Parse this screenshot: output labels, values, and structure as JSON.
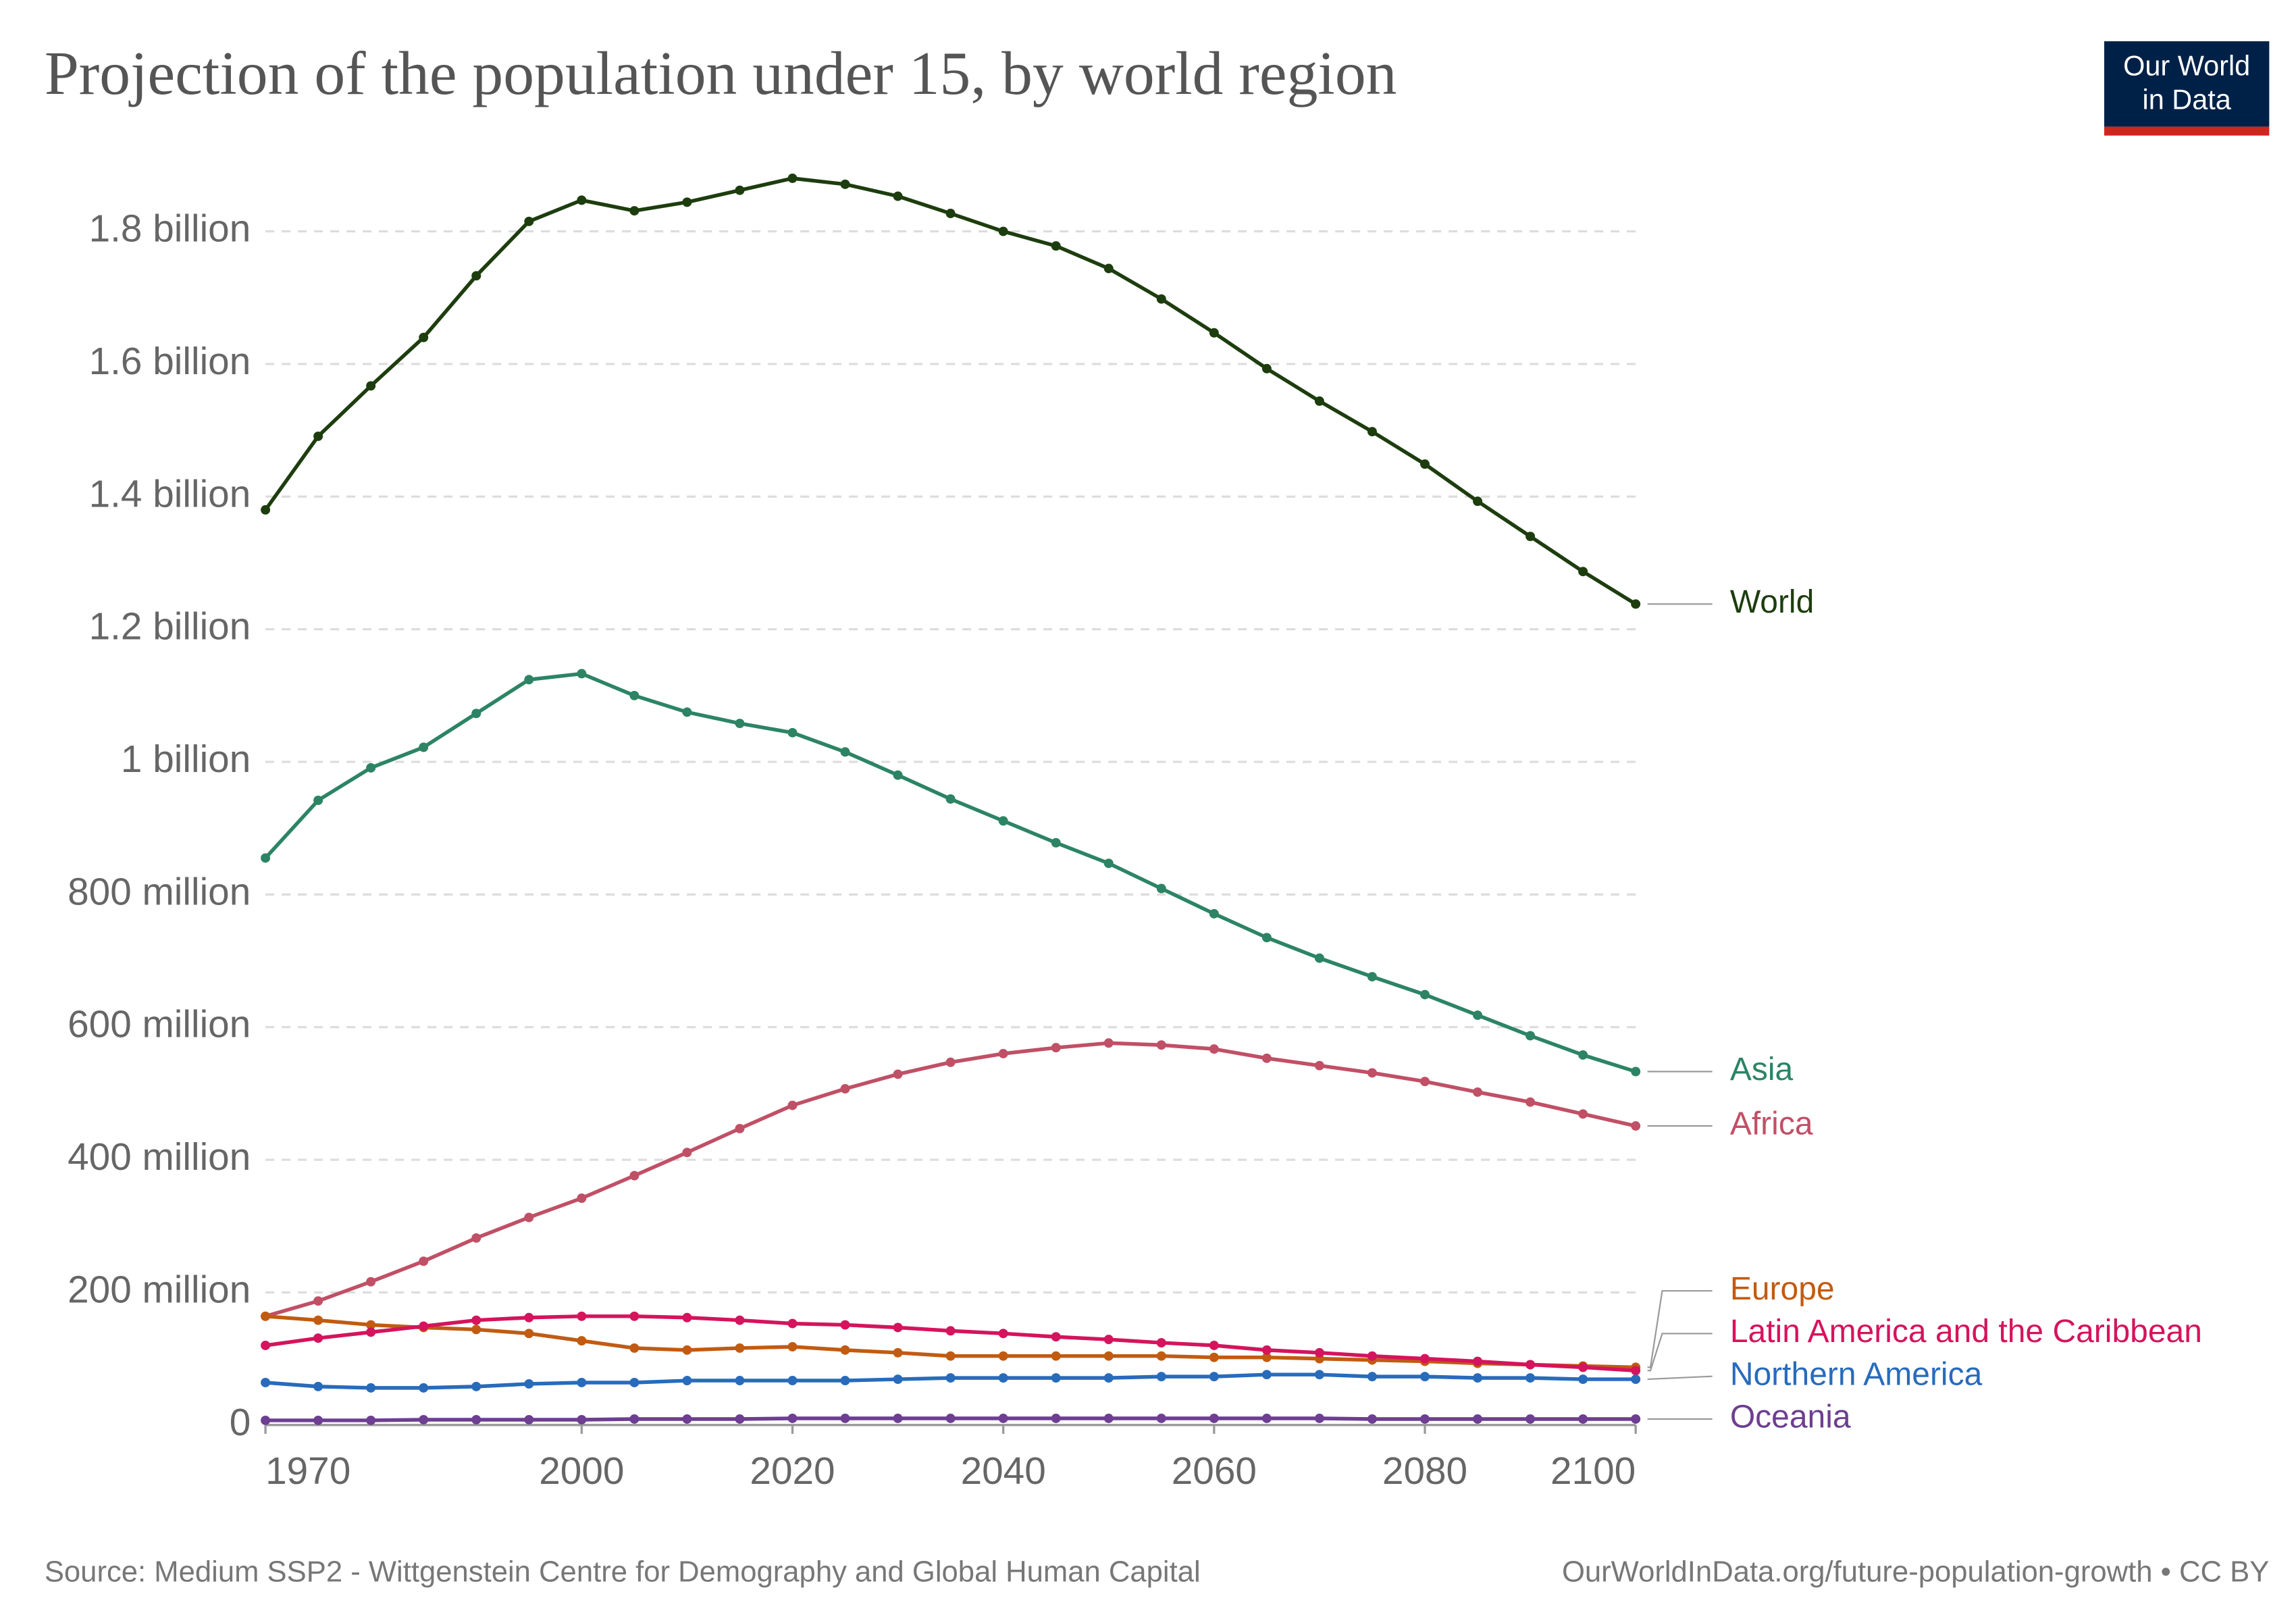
{
  "chart_data": {
    "type": "line",
    "title": "Projection of the population under 15, by world region",
    "logo": [
      "Our World",
      "in Data"
    ],
    "source": "Source: Medium SSP2 - Wittgenstein Centre for Demography and Global Human Capital",
    "note": "OurWorldInData.org/future-population-growth • CC BY",
    "x": [
      1970,
      1975,
      1980,
      1985,
      1990,
      1995,
      2000,
      2005,
      2010,
      2015,
      2020,
      2025,
      2030,
      2035,
      2040,
      2045,
      2050,
      2055,
      2060,
      2065,
      2070,
      2075,
      2080,
      2085,
      2090,
      2095,
      2100
    ],
    "xlim": [
      1970,
      2100
    ],
    "xticks": [
      1970,
      2000,
      2020,
      2040,
      2060,
      2080,
      2100
    ],
    "ylim": [
      0,
      1900000000
    ],
    "yticks": [
      0,
      {
        "value": 200000000,
        "label": "200 million"
      },
      {
        "value": 400000000,
        "label": "400 million"
      },
      {
        "value": 600000000,
        "label": "600 million"
      },
      {
        "value": 800000000,
        "label": "800 million"
      },
      {
        "value": 1000000000,
        "label": "1 billion"
      },
      {
        "value": 1200000000,
        "label": "1.2 billion"
      },
      {
        "value": 1400000000,
        "label": "1.4 billion"
      },
      {
        "value": 1600000000,
        "label": "1.6 billion"
      },
      {
        "value": 1800000000,
        "label": "1.8 billion"
      }
    ],
    "grid": true,
    "series": [
      {
        "name": "World",
        "color": "#1d3d0e",
        "values": [
          1380000000,
          1491000000,
          1567000000,
          1640000000,
          1733000000,
          1815000000,
          1847000000,
          1831000000,
          1844000000,
          1862000000,
          1880000000,
          1871000000,
          1853000000,
          1827000000,
          1800000000,
          1778000000,
          1744000000,
          1698000000,
          1647000000,
          1593000000,
          1544000000,
          1498000000,
          1449000000,
          1393000000,
          1340000000,
          1287000000,
          1238000000
        ]
      },
      {
        "name": "Asia",
        "color": "#2c8465",
        "values": [
          855000000,
          942000000,
          991000000,
          1022000000,
          1073000000,
          1124000000,
          1133000000,
          1100000000,
          1075000000,
          1058000000,
          1044000000,
          1015000000,
          980000000,
          944000000,
          911000000,
          878000000,
          847000000,
          809000000,
          771000000,
          735000000,
          704000000,
          676000000,
          649000000,
          618000000,
          587000000,
          558000000,
          533000000
        ]
      },
      {
        "name": "Africa",
        "color": "#c05066",
        "values": [
          164000000,
          187000000,
          216000000,
          247000000,
          282000000,
          313000000,
          342000000,
          376000000,
          411000000,
          447000000,
          482000000,
          507000000,
          529000000,
          547000000,
          560000000,
          569000000,
          576000000,
          573000000,
          567000000,
          553000000,
          542000000,
          531000000,
          518000000,
          502000000,
          487000000,
          469000000,
          451000000
        ]
      },
      {
        "name": "Europe",
        "color": "#c15b11",
        "values": [
          164000000,
          158000000,
          151000000,
          147000000,
          144000000,
          138000000,
          127000000,
          116000000,
          113000000,
          116000000,
          118000000,
          113000000,
          109000000,
          104000000,
          104000000,
          104000000,
          104000000,
          104000000,
          102000000,
          102000000,
          100000000,
          98000000,
          96000000,
          93000000,
          91000000,
          89000000,
          87000000
        ]
      },
      {
        "name": "Latin America and the Caribbean",
        "color": "#d4145c",
        "values": [
          120000000,
          131000000,
          140000000,
          149000000,
          158000000,
          162000000,
          164000000,
          164000000,
          162000000,
          158000000,
          153000000,
          151000000,
          147000000,
          142000000,
          138000000,
          133000000,
          129000000,
          124000000,
          120000000,
          113000000,
          109000000,
          104000000,
          100000000,
          96000000,
          91000000,
          87000000,
          82000000
        ]
      },
      {
        "name": "Northern America",
        "color": "#286bbb",
        "values": [
          64000000,
          58000000,
          56000000,
          56000000,
          58000000,
          62000000,
          64000000,
          64000000,
          67000000,
          67000000,
          67000000,
          67000000,
          69000000,
          71000000,
          71000000,
          71000000,
          71000000,
          73000000,
          73000000,
          76000000,
          76000000,
          73000000,
          73000000,
          71000000,
          71000000,
          69000000,
          69000000
        ]
      },
      {
        "name": "Oceania",
        "color": "#6d3e91",
        "values": [
          7000000,
          7000000,
          7000000,
          8000000,
          8000000,
          8000000,
          8000000,
          9000000,
          9000000,
          9000000,
          10000000,
          10000000,
          10000000,
          10000000,
          10000000,
          10000000,
          10000000,
          10000000,
          10000000,
          10000000,
          10000000,
          9000000,
          9000000,
          9000000,
          9000000,
          9000000,
          9000000
        ]
      }
    ]
  }
}
